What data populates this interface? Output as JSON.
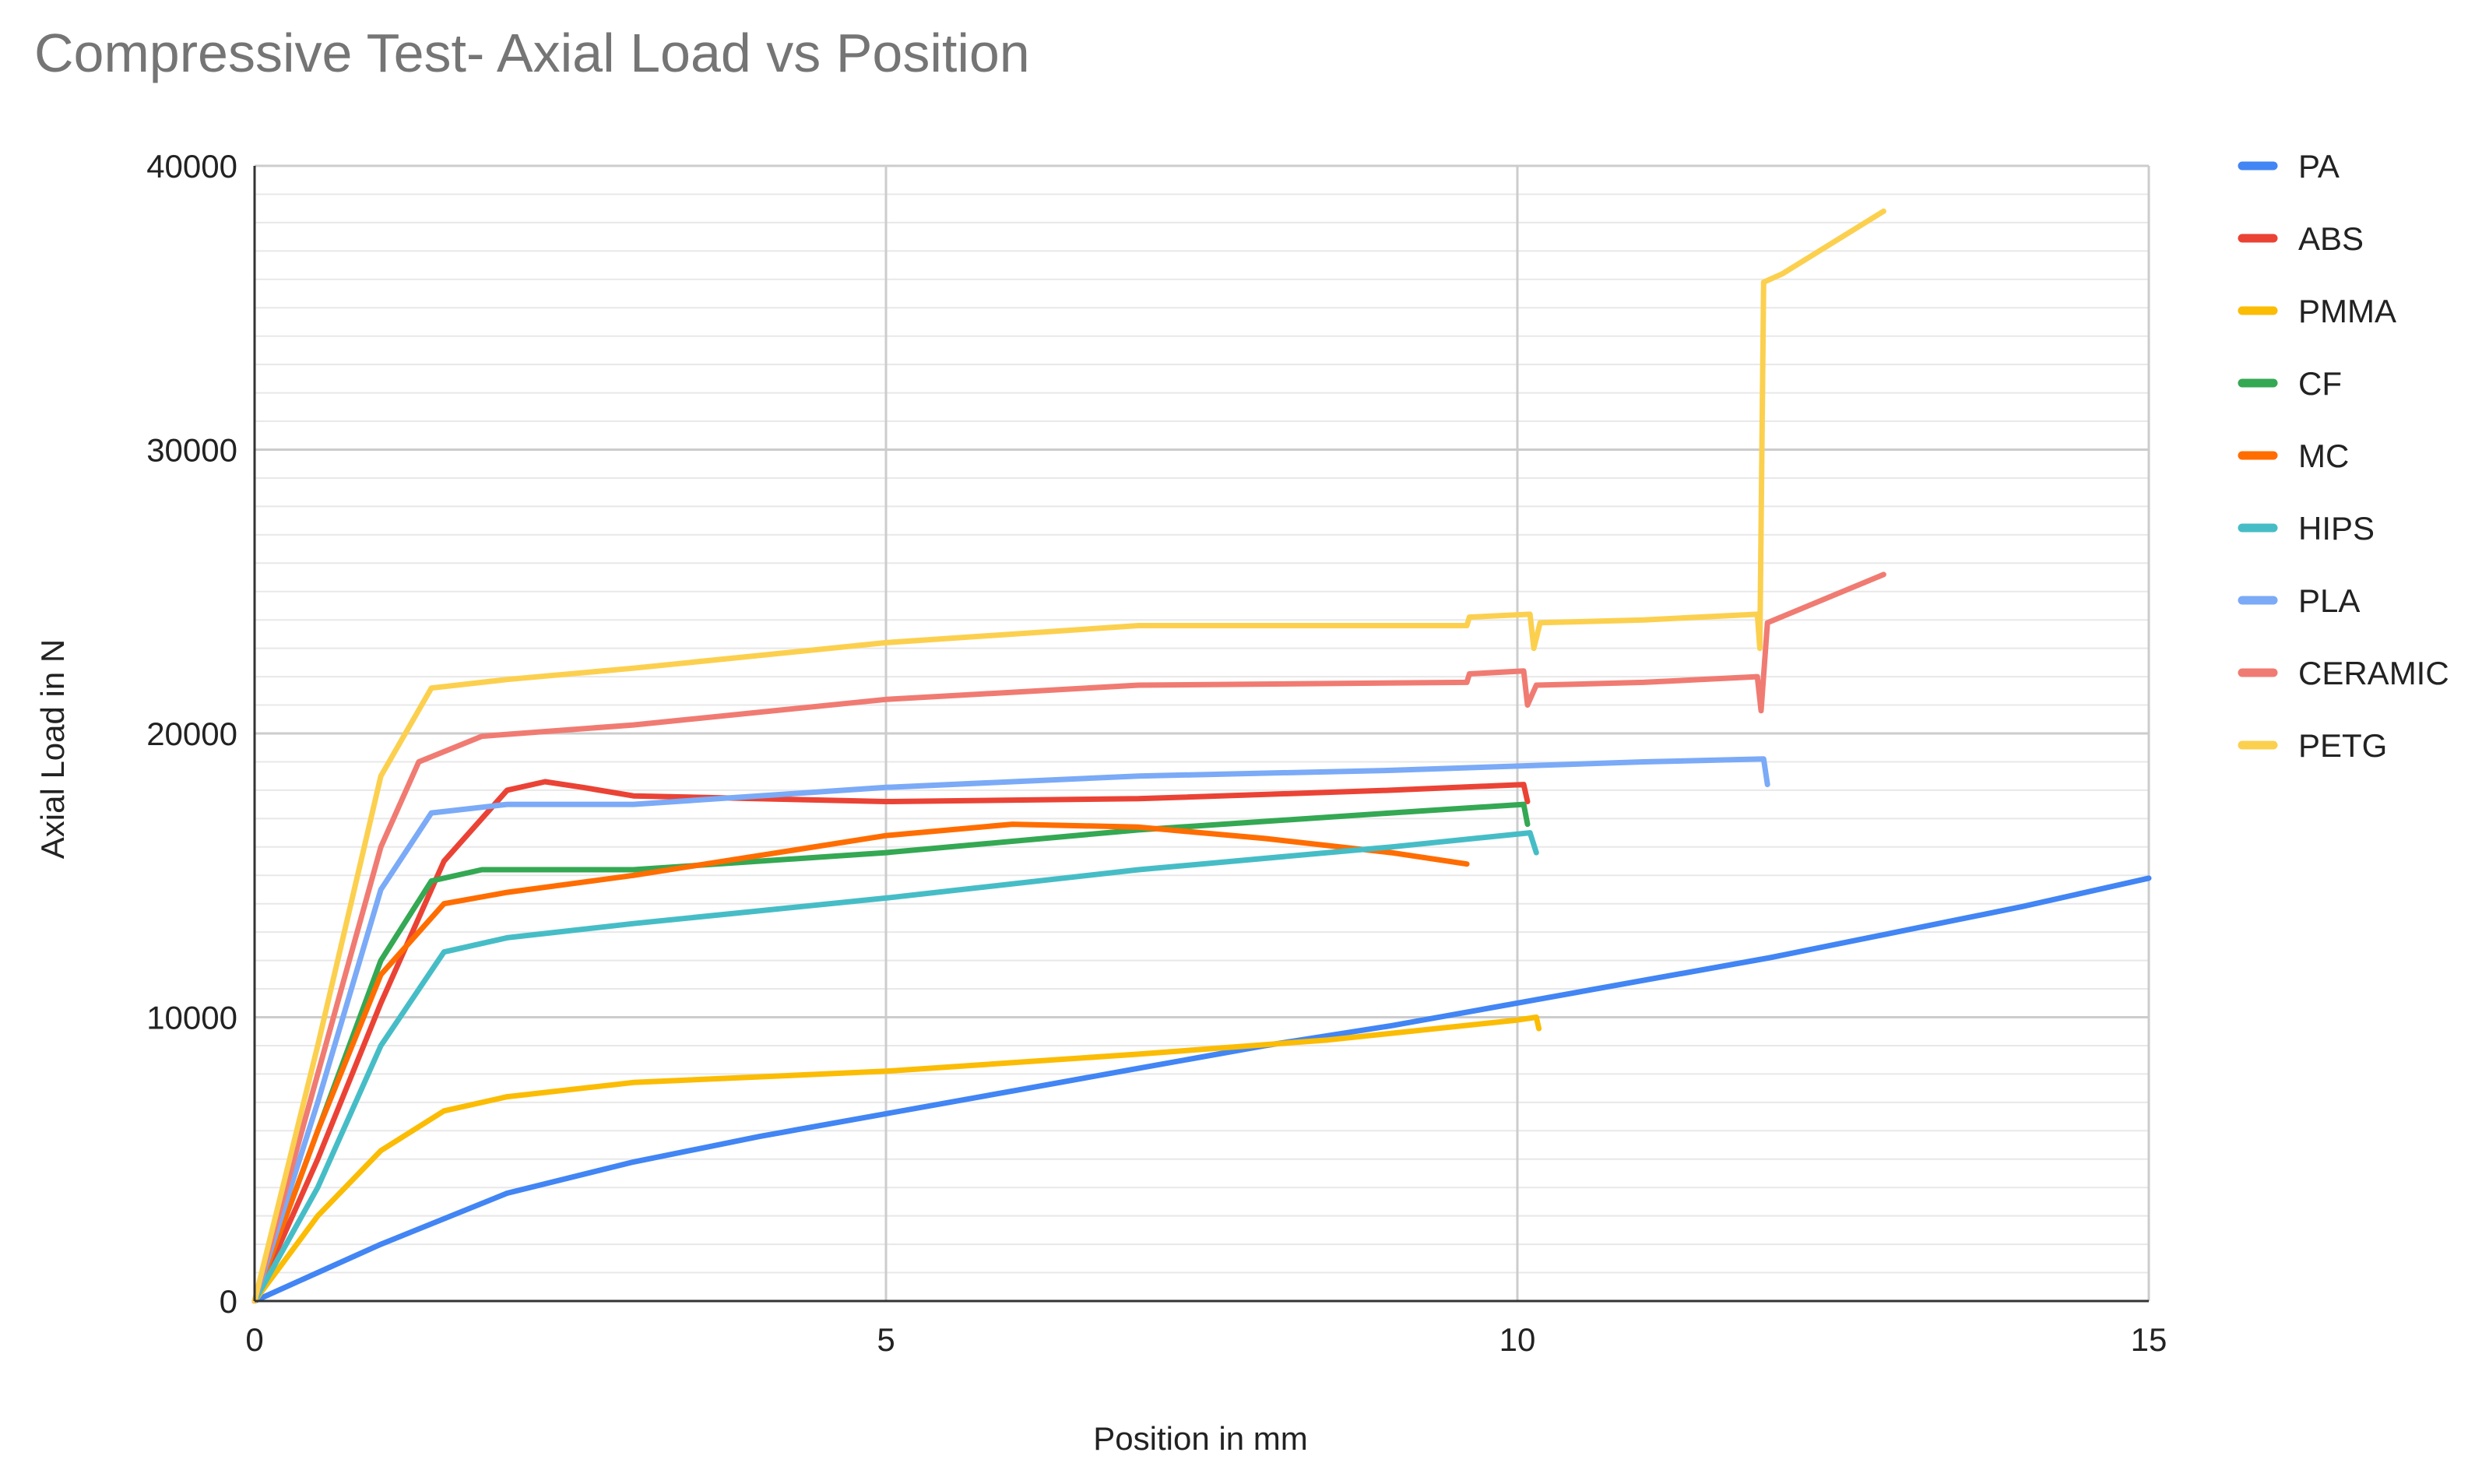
{
  "chart_data": {
    "type": "line",
    "title": "Compressive Test- Axial Load vs Position",
    "xlabel": "Position in mm",
    "ylabel": "Axial Load in N",
    "xlim": [
      0,
      15
    ],
    "ylim": [
      0,
      40000
    ],
    "x_ticks": [
      "0",
      "5",
      "10",
      "15"
    ],
    "y_ticks": [
      "0",
      "10000",
      "20000",
      "30000",
      "40000"
    ],
    "grid": true,
    "legend_position": "right",
    "series": [
      {
        "name": "PA",
        "color": "#4285F4",
        "points": [
          [
            0,
            0
          ],
          [
            0.5,
            1000
          ],
          [
            1,
            2000
          ],
          [
            2,
            3800
          ],
          [
            3,
            4900
          ],
          [
            4,
            5800
          ],
          [
            5,
            6600
          ],
          [
            6,
            7400
          ],
          [
            7,
            8200
          ],
          [
            8,
            9000
          ],
          [
            9,
            9700
          ],
          [
            10,
            10500
          ],
          [
            11,
            11300
          ],
          [
            12,
            12100
          ],
          [
            13,
            13000
          ],
          [
            14,
            13900
          ],
          [
            15,
            14900
          ]
        ]
      },
      {
        "name": "ABS",
        "color": "#EA4335",
        "points": [
          [
            0,
            0
          ],
          [
            0.5,
            5000
          ],
          [
            1,
            10500
          ],
          [
            1.5,
            15500
          ],
          [
            2,
            18000
          ],
          [
            2.3,
            18300
          ],
          [
            2.6,
            18100
          ],
          [
            3,
            17800
          ],
          [
            5,
            17600
          ],
          [
            7,
            17700
          ],
          [
            9,
            18000
          ],
          [
            10.05,
            18200
          ],
          [
            10.08,
            17600
          ]
        ]
      },
      {
        "name": "PMMA",
        "color": "#FBBC04",
        "points": [
          [
            0,
            0
          ],
          [
            0.5,
            3000
          ],
          [
            1,
            5300
          ],
          [
            1.5,
            6700
          ],
          [
            2,
            7200
          ],
          [
            3,
            7700
          ],
          [
            5,
            8100
          ],
          [
            7,
            8700
          ],
          [
            8.5,
            9200
          ],
          [
            10,
            9900
          ],
          [
            10.15,
            10000
          ],
          [
            10.17,
            9600
          ]
        ]
      },
      {
        "name": "CF",
        "color": "#34A853",
        "points": [
          [
            0,
            0
          ],
          [
            0.5,
            6000
          ],
          [
            1,
            12000
          ],
          [
            1.4,
            14800
          ],
          [
            1.8,
            15200
          ],
          [
            3,
            15200
          ],
          [
            5,
            15800
          ],
          [
            7,
            16600
          ],
          [
            9,
            17200
          ],
          [
            10.05,
            17500
          ],
          [
            10.08,
            16800
          ]
        ]
      },
      {
        "name": "MC",
        "color": "#FF6D01",
        "points": [
          [
            0,
            0
          ],
          [
            0.5,
            6000
          ],
          [
            1,
            11500
          ],
          [
            1.5,
            14000
          ],
          [
            2,
            14400
          ],
          [
            3,
            15000
          ],
          [
            5,
            16400
          ],
          [
            6,
            16800
          ],
          [
            7,
            16700
          ],
          [
            8,
            16300
          ],
          [
            9,
            15800
          ],
          [
            9.6,
            15400
          ]
        ]
      },
      {
        "name": "HIPS",
        "color": "#46BDC6",
        "points": [
          [
            0,
            0
          ],
          [
            0.5,
            4000
          ],
          [
            1,
            9000
          ],
          [
            1.5,
            12300
          ],
          [
            2,
            12800
          ],
          [
            3,
            13300
          ],
          [
            5,
            14200
          ],
          [
            7,
            15200
          ],
          [
            9,
            16000
          ],
          [
            10.1,
            16500
          ],
          [
            10.15,
            15800
          ]
        ]
      },
      {
        "name": "PLA",
        "color": "#7BAAF7",
        "points": [
          [
            0,
            0
          ],
          [
            0.5,
            7000
          ],
          [
            1,
            14500
          ],
          [
            1.4,
            17200
          ],
          [
            2,
            17500
          ],
          [
            3,
            17500
          ],
          [
            5,
            18100
          ],
          [
            7,
            18500
          ],
          [
            9,
            18700
          ],
          [
            11,
            19000
          ],
          [
            11.95,
            19100
          ],
          [
            11.98,
            18200
          ]
        ]
      },
      {
        "name": "CERAMIC",
        "color": "#F07B72",
        "points": [
          [
            0,
            0
          ],
          [
            0.5,
            8000
          ],
          [
            1,
            16000
          ],
          [
            1.3,
            19000
          ],
          [
            1.8,
            19900
          ],
          [
            3,
            20300
          ],
          [
            5,
            21200
          ],
          [
            7,
            21700
          ],
          [
            9.6,
            21800
          ],
          [
            9.62,
            22100
          ],
          [
            10.05,
            22200
          ],
          [
            10.08,
            21000
          ],
          [
            10.15,
            21700
          ],
          [
            11,
            21800
          ],
          [
            11.9,
            22000
          ],
          [
            11.93,
            20800
          ],
          [
            11.98,
            23900
          ],
          [
            12.9,
            25600
          ]
        ]
      },
      {
        "name": "PETG",
        "color": "#FCD04F",
        "points": [
          [
            0,
            0
          ],
          [
            0.5,
            9000
          ],
          [
            1,
            18500
          ],
          [
            1.4,
            21600
          ],
          [
            2,
            21900
          ],
          [
            3,
            22300
          ],
          [
            5,
            23200
          ],
          [
            7,
            23800
          ],
          [
            9.6,
            23800
          ],
          [
            9.62,
            24100
          ],
          [
            10.1,
            24200
          ],
          [
            10.13,
            23000
          ],
          [
            10.18,
            23900
          ],
          [
            11,
            24000
          ],
          [
            11.9,
            24200
          ],
          [
            11.92,
            23000
          ],
          [
            11.95,
            35900
          ],
          [
            12.1,
            36200
          ],
          [
            12.9,
            38400
          ]
        ]
      }
    ]
  }
}
